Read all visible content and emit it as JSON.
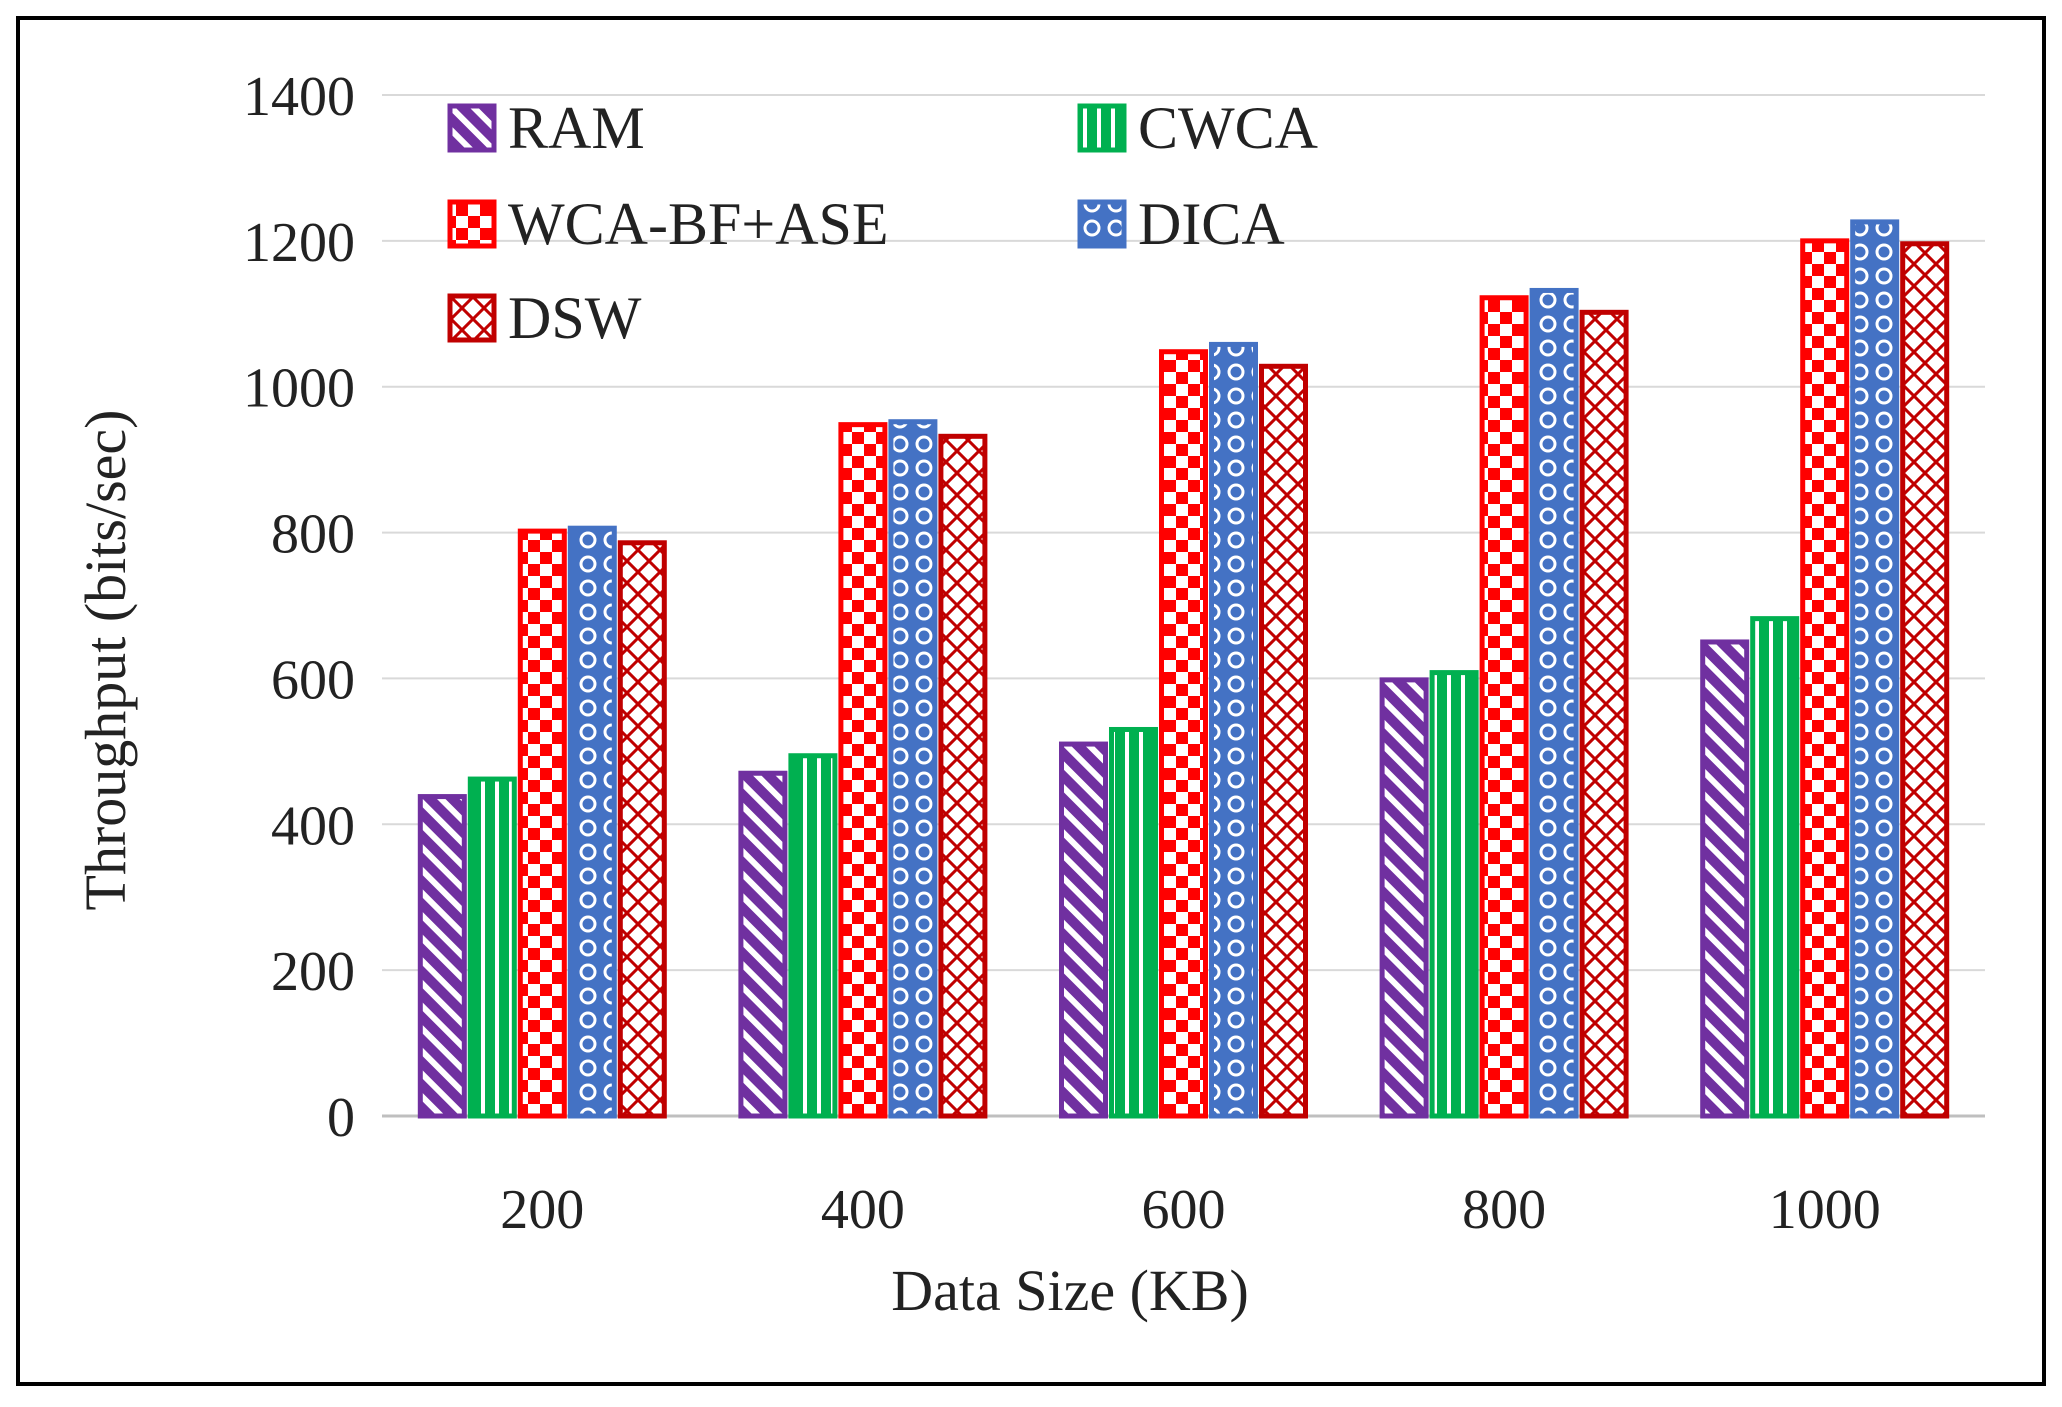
{
  "chart_data": {
    "type": "bar",
    "title": "",
    "xlabel": "Data Size (KB)",
    "ylabel": "Throughput (bits/sec)",
    "ylim": [
      0,
      1400
    ],
    "yticks": [
      "0",
      "200",
      "400",
      "600",
      "800",
      "1000",
      "1200",
      "1400"
    ],
    "ytick_values": [
      0,
      200,
      400,
      600,
      800,
      1000,
      1200,
      1400
    ],
    "categories": [
      "200",
      "400",
      "600",
      "800",
      "1000"
    ],
    "grid": true,
    "legend_position": "top-left",
    "series": [
      {
        "name": "RAM",
        "values": [
          438,
          470,
          510,
          598,
          650
        ],
        "color": "#7030A0",
        "pattern": "diagonal-stripes"
      },
      {
        "name": "CWCA",
        "values": [
          462,
          494,
          530,
          608,
          682
        ],
        "color": "#00B050",
        "pattern": "vertical-stripes"
      },
      {
        "name": "WCA-BF+ASE",
        "values": [
          802,
          948,
          1048,
          1122,
          1200
        ],
        "color": "#FF0000",
        "pattern": "checkerboard"
      },
      {
        "name": "DICA",
        "values": [
          806,
          952,
          1058,
          1132,
          1226
        ],
        "color": "#4472C4",
        "pattern": "dots"
      },
      {
        "name": "DSW",
        "values": [
          786,
          932,
          1028,
          1102,
          1196
        ],
        "color": "#C00000",
        "pattern": "crosshatch"
      }
    ]
  }
}
